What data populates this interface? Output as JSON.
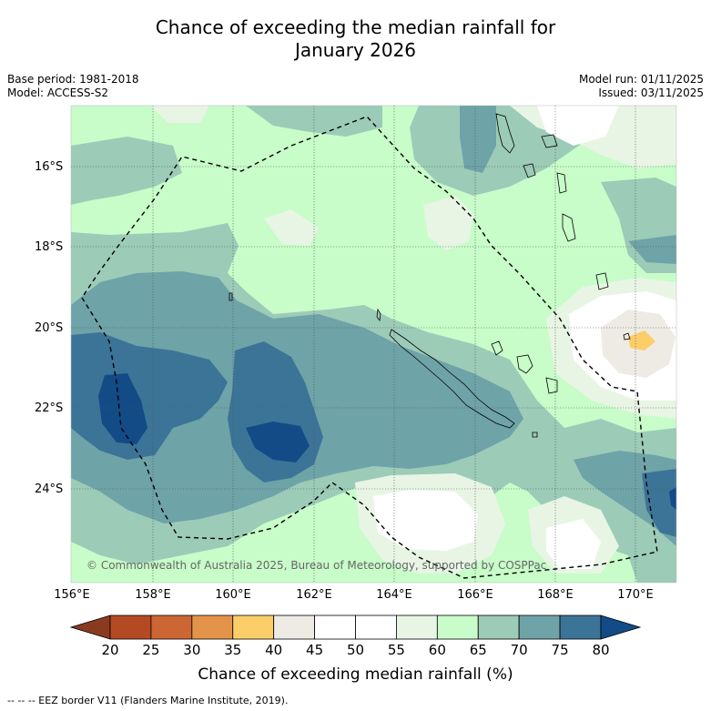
{
  "title_line1": "Chance of exceeding the median rainfall for",
  "title_line2": "January 2026",
  "meta_left": {
    "base_period": "Base period: 1981-2018",
    "model": "Model: ACCESS-S2"
  },
  "meta_right": {
    "model_run": "Model run: 01/11/2025",
    "issued": "Issued: 03/11/2025"
  },
  "lat_labels": [
    "16°S",
    "18°S",
    "20°S",
    "22°S",
    "24°S"
  ],
  "lon_labels": [
    "156°E",
    "158°E",
    "160°E",
    "162°E",
    "164°E",
    "166°E",
    "168°E",
    "170°E"
  ],
  "copyright": "© Commonwealth of Australia 2025, Bureau of Meteorology, supported by COSPPac",
  "colorbar": {
    "ticks": [
      "20",
      "25",
      "30",
      "35",
      "40",
      "45",
      "50",
      "55",
      "60",
      "65",
      "70",
      "75",
      "80"
    ],
    "colors": [
      "#b34a23",
      "#cc6633",
      "#e3944a",
      "#fcce6a",
      "#eeebe5",
      "#ffffff",
      "#ffffff",
      "#e8f5e4",
      "#c8fcc9",
      "#9ccbb8",
      "#6ea3a8",
      "#3c7498"
    ],
    "under_color": "#8b3a22",
    "over_color": "#134b87",
    "title": "Chance of exceeding median rainfall (%)"
  },
  "footer": "--  --  -- EEZ border V11 (Flanders Marine Institute, 2019)."
}
